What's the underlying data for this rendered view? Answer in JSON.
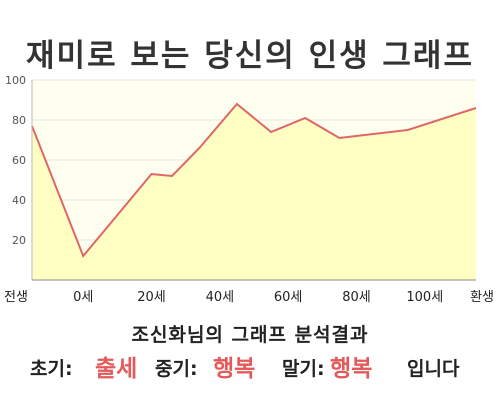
{
  "title": "재미로 보는 당신의 인생 그래프",
  "subtitle": "조신화님의 그래프 분석결과",
  "result": {
    "early_label": "초기:",
    "early_value": "출세",
    "mid_label": "중기:",
    "mid_value": "행복",
    "late_label": "말기:",
    "late_value": "행복",
    "ending": "입니다"
  },
  "colors": {
    "line": "#e06666",
    "area_fill": "#ffffc4",
    "plot_background": "#fffff0",
    "highlight": "#e45a5a"
  },
  "chart_data": {
    "type": "area",
    "x_tick_labels": [
      "전생",
      "0세",
      "20세",
      "40세",
      "60세",
      "80세",
      "100세",
      "환생"
    ],
    "ylim": [
      0,
      100
    ],
    "yticks": [
      20,
      40,
      60,
      80,
      100
    ],
    "grid": true,
    "legend": "none",
    "series": [
      {
        "points": [
          {
            "x": -15,
            "y": 77
          },
          {
            "x": 0,
            "y": 12
          },
          {
            "x": 20,
            "y": 53
          },
          {
            "x": 26,
            "y": 52
          },
          {
            "x": 34,
            "y": 66
          },
          {
            "x": 45,
            "y": 88
          },
          {
            "x": 55,
            "y": 74
          },
          {
            "x": 65,
            "y": 81
          },
          {
            "x": 75,
            "y": 71
          },
          {
            "x": 95,
            "y": 75
          },
          {
            "x": 115,
            "y": 86
          }
        ]
      }
    ]
  }
}
